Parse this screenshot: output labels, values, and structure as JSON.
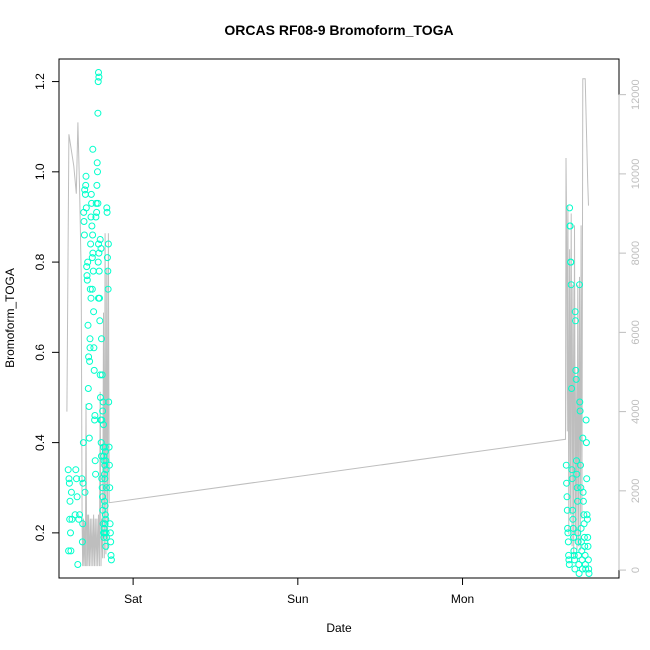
{
  "chart_data": {
    "type": "scatter",
    "title": "ORCAS RF08-9 Bromoform_TOGA",
    "xlabel": "Date",
    "ylabel": "Bromoform_TOGA",
    "x_ticks": [
      {
        "label": "Sat",
        "day": 1.0
      },
      {
        "label": "Sun",
        "day": 2.0
      },
      {
        "label": "Mon",
        "day": 3.0
      }
    ],
    "xlim": [
      0.55,
      3.95
    ],
    "ylim": [
      0.1,
      1.25
    ],
    "y_ticks": [
      0.2,
      0.4,
      0.6,
      0.8,
      1.0,
      1.2
    ],
    "y2lim": [
      -200,
      12900
    ],
    "y2_ticks": [
      0,
      2000,
      4000,
      6000,
      8000,
      10000,
      12000
    ],
    "grid": false,
    "colors": {
      "points": "#00ffcc",
      "line": "#bebebe",
      "axis": "#000000",
      "axis2": "#bebebe"
    },
    "series": [
      {
        "points": [
          [
            0.606,
            0.34
          ],
          [
            0.608,
            0.16
          ],
          [
            0.611,
            0.32
          ],
          [
            0.613,
            0.31
          ],
          [
            0.615,
            0.23
          ],
          [
            0.617,
            0.27
          ],
          [
            0.62,
            0.2
          ],
          [
            0.622,
            0.16
          ],
          [
            0.625,
            0.29
          ],
          [
            0.629,
            0.23
          ],
          [
            0.648,
            0.24
          ],
          [
            0.652,
            0.34
          ],
          [
            0.656,
            0.32
          ],
          [
            0.66,
            0.28
          ],
          [
            0.664,
            0.13
          ],
          [
            0.67,
            0.23
          ],
          [
            0.675,
            0.24
          ],
          [
            0.689,
            0.32
          ],
          [
            0.692,
            0.18
          ],
          [
            0.694,
            0.22
          ],
          [
            0.696,
            0.31
          ],
          [
            0.698,
            0.4
          ],
          [
            0.7,
            0.91
          ],
          [
            0.702,
            0.89
          ],
          [
            0.704,
            0.86
          ],
          [
            0.706,
            0.96
          ],
          [
            0.708,
            0.29
          ],
          [
            0.71,
            0.95
          ],
          [
            0.712,
            0.97
          ],
          [
            0.714,
            0.99
          ],
          [
            0.716,
            0.92
          ],
          [
            0.718,
            0.79
          ],
          [
            0.72,
            0.77
          ],
          [
            0.722,
            0.76
          ],
          [
            0.724,
            0.8
          ],
          [
            0.726,
            0.66
          ],
          [
            0.728,
            0.52
          ],
          [
            0.73,
            0.59
          ],
          [
            0.732,
            0.48
          ],
          [
            0.734,
            0.41
          ],
          [
            0.736,
            0.58
          ],
          [
            0.738,
            0.63
          ],
          [
            0.74,
            0.74
          ],
          [
            0.742,
            0.84
          ],
          [
            0.744,
            0.9
          ],
          [
            0.746,
            0.95
          ],
          [
            0.748,
            0.93
          ],
          [
            0.75,
            0.88
          ],
          [
            0.752,
            0.81
          ],
          [
            0.754,
            0.86
          ],
          [
            0.756,
            0.82
          ],
          [
            0.758,
            0.78
          ],
          [
            0.76,
            0.69
          ],
          [
            0.762,
            0.61
          ],
          [
            0.764,
            0.56
          ],
          [
            0.766,
            0.45
          ],
          [
            0.768,
            0.46
          ],
          [
            0.77,
            0.36
          ],
          [
            0.772,
            0.33
          ],
          [
            0.774,
            0.9
          ],
          [
            0.776,
            0.93
          ],
          [
            0.778,
            0.91
          ],
          [
            0.78,
            0.97
          ],
          [
            0.782,
            1.02
          ],
          [
            0.784,
            1.0
          ],
          [
            0.786,
            0.93
          ],
          [
            0.788,
            0.8
          ],
          [
            0.79,
            0.84
          ],
          [
            0.792,
            0.82
          ],
          [
            0.794,
            0.78
          ],
          [
            0.796,
            0.72
          ],
          [
            0.798,
            0.67
          ],
          [
            0.8,
            0.55
          ],
          [
            0.802,
            0.5
          ],
          [
            0.804,
            0.45
          ],
          [
            0.806,
            0.4
          ],
          [
            0.808,
            0.37
          ],
          [
            0.81,
            0.32
          ],
          [
            0.812,
            0.3
          ],
          [
            0.814,
            0.28
          ],
          [
            0.816,
            0.25
          ],
          [
            0.818,
            0.22
          ],
          [
            0.82,
            0.2
          ],
          [
            0.822,
            0.19
          ],
          [
            0.824,
            0.21
          ],
          [
            0.826,
            0.2
          ],
          [
            0.828,
            0.35
          ],
          [
            0.83,
            0.39
          ],
          [
            0.832,
            0.38
          ],
          [
            0.834,
            0.36
          ],
          [
            0.836,
            0.34
          ],
          [
            0.838,
            0.3
          ],
          [
            0.79,
            0.72
          ],
          [
            0.755,
            1.05
          ],
          [
            0.752,
            0.74
          ],
          [
            0.738,
            0.61
          ],
          [
            0.744,
            0.72
          ],
          [
            0.786,
            1.13
          ],
          [
            0.788,
            1.2
          ],
          [
            0.79,
            1.22
          ],
          [
            0.792,
            1.21
          ],
          [
            0.8,
            0.85
          ],
          [
            0.805,
            0.83
          ],
          [
            0.808,
            0.63
          ],
          [
            0.812,
            0.55
          ],
          [
            0.815,
            0.47
          ],
          [
            0.818,
            0.49
          ],
          [
            0.82,
            0.39
          ],
          [
            0.822,
            0.37
          ],
          [
            0.824,
            0.36
          ],
          [
            0.826,
            0.33
          ],
          [
            0.828,
            0.32
          ],
          [
            0.83,
            0.26
          ],
          [
            0.832,
            0.24
          ],
          [
            0.834,
            0.23
          ],
          [
            0.836,
            0.2
          ],
          [
            0.838,
            0.19
          ],
          [
            0.84,
            0.92
          ],
          [
            0.842,
            0.91
          ],
          [
            0.844,
            0.81
          ],
          [
            0.846,
            0.78
          ],
          [
            0.848,
            0.74
          ],
          [
            0.85,
            0.84
          ],
          [
            0.852,
            0.49
          ],
          [
            0.854,
            0.39
          ],
          [
            0.856,
            0.35
          ],
          [
            0.858,
            0.3
          ],
          [
            0.86,
            0.22
          ],
          [
            0.862,
            0.2
          ],
          [
            0.864,
            0.18
          ],
          [
            0.866,
            0.15
          ],
          [
            0.868,
            0.14
          ],
          [
            0.82,
            0.44
          ],
          [
            0.81,
            0.45
          ],
          [
            0.826,
            0.27
          ],
          [
            0.83,
            0.22
          ],
          [
            0.834,
            0.17
          ],
          [
            3.63,
            0.35
          ],
          [
            3.632,
            0.31
          ],
          [
            3.634,
            0.28
          ],
          [
            3.636,
            0.25
          ],
          [
            3.638,
            0.21
          ],
          [
            3.64,
            0.2
          ],
          [
            3.642,
            0.18
          ],
          [
            3.644,
            0.15
          ],
          [
            3.646,
            0.14
          ],
          [
            3.648,
            0.13
          ],
          [
            3.65,
            0.92
          ],
          [
            3.652,
            0.88
          ],
          [
            3.654,
            0.88
          ],
          [
            3.656,
            0.8
          ],
          [
            3.658,
            0.8
          ],
          [
            3.66,
            0.75
          ],
          [
            3.662,
            0.52
          ],
          [
            3.664,
            0.34
          ],
          [
            3.666,
            0.32
          ],
          [
            3.668,
            0.25
          ],
          [
            3.67,
            0.23
          ],
          [
            3.672,
            0.21
          ],
          [
            3.674,
            0.19
          ],
          [
            3.676,
            0.16
          ],
          [
            3.678,
            0.15
          ],
          [
            3.68,
            0.14
          ],
          [
            3.682,
            0.12
          ],
          [
            3.684,
            0.69
          ],
          [
            3.686,
            0.67
          ],
          [
            3.688,
            0.56
          ],
          [
            3.69,
            0.54
          ],
          [
            3.692,
            0.36
          ],
          [
            3.694,
            0.33
          ],
          [
            3.696,
            0.3
          ],
          [
            3.698,
            0.27
          ],
          [
            3.7,
            0.2
          ],
          [
            3.702,
            0.18
          ],
          [
            3.704,
            0.15
          ],
          [
            3.706,
            0.13
          ],
          [
            3.708,
            0.11
          ],
          [
            3.71,
            0.75
          ],
          [
            3.712,
            0.49
          ],
          [
            3.714,
            0.47
          ],
          [
            3.716,
            0.35
          ],
          [
            3.718,
            0.3
          ],
          [
            3.72,
            0.21
          ],
          [
            3.722,
            0.18
          ],
          [
            3.724,
            0.16
          ],
          [
            3.726,
            0.14
          ],
          [
            3.728,
            0.12
          ],
          [
            3.73,
            0.41
          ],
          [
            3.732,
            0.29
          ],
          [
            3.734,
            0.27
          ],
          [
            3.736,
            0.24
          ],
          [
            3.738,
            0.22
          ],
          [
            3.74,
            0.19
          ],
          [
            3.742,
            0.17
          ],
          [
            3.744,
            0.15
          ],
          [
            3.746,
            0.13
          ],
          [
            3.748,
            0.12
          ],
          [
            3.75,
            0.45
          ],
          [
            3.752,
            0.4
          ],
          [
            3.754,
            0.32
          ],
          [
            3.756,
            0.24
          ],
          [
            3.758,
            0.23
          ],
          [
            3.76,
            0.19
          ],
          [
            3.762,
            0.17
          ],
          [
            3.764,
            0.14
          ],
          [
            3.766,
            0.12
          ],
          [
            3.768,
            0.11
          ]
        ]
      },
      {
        "axis": "right",
        "points": [
          [
            0.598,
            4000
          ],
          [
            0.61,
            11000
          ],
          [
            0.64,
            10200
          ],
          [
            0.655,
            9500
          ],
          [
            0.665,
            11300
          ],
          [
            0.675,
            9600
          ],
          [
            0.685,
            7500
          ],
          [
            0.69,
            1200
          ],
          [
            0.694,
            100
          ],
          [
            0.698,
            1300
          ],
          [
            0.702,
            100
          ],
          [
            0.706,
            1200
          ],
          [
            0.71,
            100
          ],
          [
            0.714,
            4200
          ],
          [
            0.718,
            100
          ],
          [
            0.722,
            1400
          ],
          [
            0.726,
            100
          ],
          [
            0.73,
            1400
          ],
          [
            0.735,
            100
          ],
          [
            0.74,
            1300
          ],
          [
            0.745,
            100
          ],
          [
            0.75,
            1300
          ],
          [
            0.755,
            100
          ],
          [
            0.76,
            1400
          ],
          [
            0.765,
            100
          ],
          [
            0.77,
            1300
          ],
          [
            0.775,
            100
          ],
          [
            0.78,
            1300
          ],
          [
            0.785,
            100
          ],
          [
            0.79,
            1400
          ],
          [
            0.795,
            100
          ],
          [
            0.8,
            4500
          ],
          [
            0.805,
            100
          ],
          [
            0.81,
            1300
          ],
          [
            0.815,
            300
          ],
          [
            0.82,
            6500
          ],
          [
            0.825,
            300
          ],
          [
            0.83,
            8500
          ],
          [
            0.835,
            400
          ],
          [
            0.84,
            7600
          ],
          [
            0.845,
            500
          ],
          [
            0.85,
            8500
          ],
          [
            0.855,
            1700
          ],
          [
            3.625,
            3300
          ],
          [
            3.628,
            10400
          ],
          [
            3.632,
            8800
          ],
          [
            3.636,
            3500
          ],
          [
            3.64,
            9200
          ],
          [
            3.645,
            900
          ],
          [
            3.65,
            8100
          ],
          [
            3.655,
            1400
          ],
          [
            3.66,
            9000
          ],
          [
            3.665,
            600
          ],
          [
            3.67,
            7200
          ],
          [
            3.675,
            300
          ],
          [
            3.68,
            8700
          ],
          [
            3.685,
            900
          ],
          [
            3.69,
            4900
          ],
          [
            3.695,
            500
          ],
          [
            3.7,
            7200
          ],
          [
            3.705,
            600
          ],
          [
            3.71,
            7400
          ],
          [
            3.715,
            500
          ],
          [
            3.72,
            8700
          ],
          [
            3.725,
            1300
          ],
          [
            3.73,
            12400
          ],
          [
            3.745,
            12400
          ],
          [
            3.76,
            9800
          ],
          [
            3.765,
            9200
          ]
        ]
      }
    ]
  }
}
